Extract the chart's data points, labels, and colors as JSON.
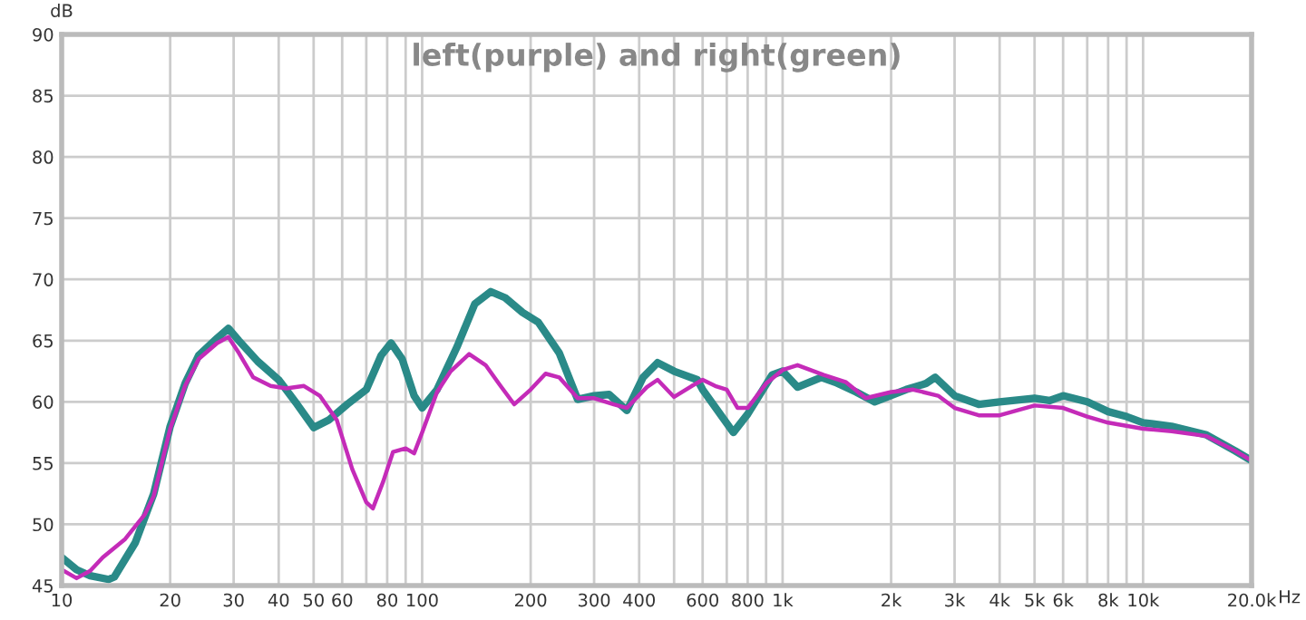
{
  "chart_data": {
    "type": "line",
    "title": "left(purple) and right(green)",
    "ylabel": "dB",
    "xlabel": "Hz",
    "log": "x",
    "grid": true,
    "legend": false,
    "marker": "none",
    "line_style": "solid",
    "xlim": [
      10,
      20000
    ],
    "ylim": [
      45,
      90
    ],
    "xticks": [
      10,
      20,
      30,
      40,
      50,
      60,
      {
        "value": 70,
        "label": null
      },
      80,
      {
        "value": 90,
        "label": null
      },
      100,
      200,
      300,
      400,
      {
        "value": 500,
        "label": null
      },
      600,
      {
        "value": 700,
        "label": null
      },
      800,
      {
        "value": 900,
        "label": null
      },
      {
        "value": 1000,
        "label": "1k"
      },
      {
        "value": 2000,
        "label": "2k"
      },
      {
        "value": 3000,
        "label": "3k"
      },
      {
        "value": 4000,
        "label": "4k"
      },
      {
        "value": 5000,
        "label": "5k"
      },
      {
        "value": 6000,
        "label": "6k"
      },
      {
        "value": 7000,
        "label": null
      },
      {
        "value": 8000,
        "label": "8k"
      },
      {
        "value": 9000,
        "label": null
      },
      {
        "value": 10000,
        "label": "10k"
      },
      {
        "value": 20000,
        "label": "20.0k"
      }
    ],
    "yticks": [
      45,
      50,
      55,
      60,
      65,
      70,
      75,
      80,
      85,
      90
    ],
    "series": [
      {
        "color": "#2a8a88",
        "x": [
          10,
          11,
          12,
          13.5,
          14,
          16,
          18,
          20,
          22,
          24,
          27,
          29,
          31,
          35,
          40,
          45,
          50,
          55,
          62,
          70,
          77,
          82,
          88,
          95,
          100,
          110,
          125,
          140,
          155,
          170,
          190,
          210,
          240,
          270,
          300,
          330,
          370,
          410,
          450,
          500,
          580,
          600,
          730,
          800,
          935,
          1000,
          1100,
          1280,
          1400,
          1600,
          1800,
          2200,
          2500,
          2650,
          3000,
          3500,
          4000,
          5000,
          5500,
          6000,
          7000,
          8000,
          9000,
          10000,
          12000,
          15000,
          18000,
          20000
        ],
        "values": [
          47.3,
          46.3,
          45.8,
          45.5,
          45.7,
          48.5,
          52.5,
          58,
          61.5,
          63.8,
          65.2,
          66,
          65,
          63.3,
          61.8,
          59.8,
          57.9,
          58.5,
          59.8,
          61,
          63.8,
          64.8,
          63.5,
          60.5,
          59.5,
          61,
          64.5,
          68,
          69,
          68.5,
          67.3,
          66.5,
          64,
          60.2,
          60.5,
          60.6,
          59.3,
          62,
          63.2,
          62.5,
          61.8,
          61,
          57.5,
          59,
          62.2,
          62.5,
          61.2,
          62,
          61.6,
          60.8,
          60,
          61,
          61.5,
          62,
          60.5,
          59.8,
          60,
          60.3,
          60.1,
          60.5,
          60,
          59.2,
          58.8,
          58.3,
          58,
          57.3,
          56,
          55.2
        ]
      },
      {
        "color": "#c42bb8",
        "x": [
          10,
          11,
          12,
          13,
          15,
          17,
          18,
          20,
          22,
          24,
          27,
          29,
          31,
          34,
          38,
          42,
          47,
          52,
          58,
          64,
          70,
          73,
          78,
          83,
          90,
          95,
          100,
          110,
          120,
          135,
          150,
          165,
          180,
          200,
          220,
          240,
          270,
          300,
          340,
          370,
          420,
          450,
          500,
          560,
          600,
          650,
          700,
          750,
          800,
          900,
          1000,
          1100,
          1300,
          1500,
          1700,
          2000,
          2300,
          2700,
          3000,
          3500,
          4000,
          5000,
          6000,
          7000,
          8000,
          10000,
          12000,
          15000,
          18000,
          20000
        ],
        "values": [
          46.3,
          45.6,
          46.2,
          47.3,
          48.8,
          50.8,
          52.3,
          57.8,
          61.3,
          63.5,
          64.8,
          65.3,
          64,
          62,
          61.3,
          61.1,
          61.3,
          60.5,
          58.5,
          54.5,
          51.8,
          51.3,
          53.5,
          55.9,
          56.2,
          55.8,
          57.5,
          60.8,
          62.5,
          63.9,
          63,
          61.3,
          59.8,
          61,
          62.3,
          62,
          60.3,
          60.3,
          59.8,
          59.5,
          61.2,
          61.8,
          60.4,
          61.3,
          61.8,
          61.3,
          61,
          59.5,
          59.5,
          61.5,
          62.6,
          63,
          62.2,
          61.6,
          60.3,
          60.8,
          61,
          60.5,
          59.5,
          58.9,
          58.9,
          59.7,
          59.5,
          58.8,
          58.3,
          57.8,
          57.6,
          57.2,
          56,
          55.2
        ]
      }
    ]
  }
}
